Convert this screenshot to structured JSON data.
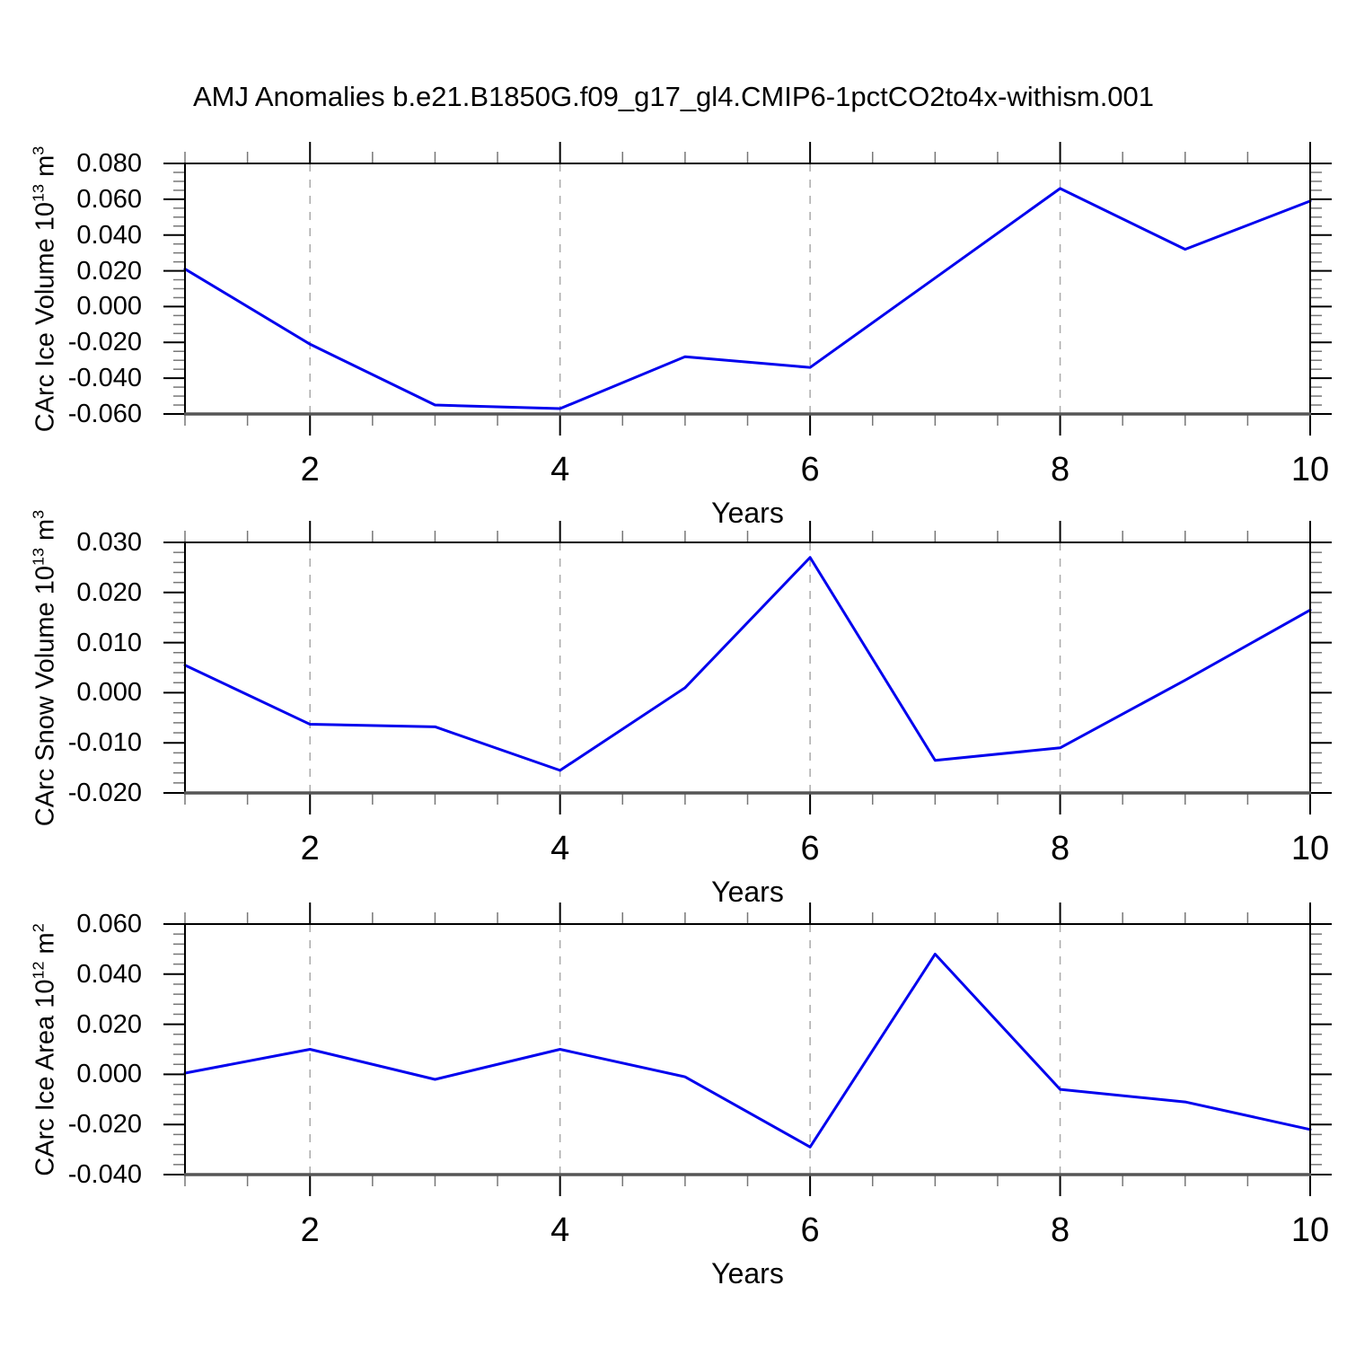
{
  "title": "AMJ Anomalies b.e21.B1850G.f09_g17_gl4.CMIP6-1pctCO2to4x-withism.001",
  "x_axis": {
    "label": "Years",
    "min": 1,
    "max": 10,
    "major_ticks": [
      2,
      4,
      6,
      8,
      10
    ],
    "major_tick_labels": [
      "2",
      "4",
      "6",
      "8",
      "10"
    ],
    "minor_step": 0.5,
    "gridline_years": [
      2,
      4,
      6,
      8
    ]
  },
  "colors": {
    "line": "#0000ee",
    "grid": "#aaaaaa",
    "frame": "#000000",
    "bottom_axis": "#555555",
    "major_tick": "#000000",
    "minor_tick": "#777777",
    "text": "#000000",
    "background": "#ffffff"
  },
  "chart_data": [
    {
      "type": "line",
      "panel": "carc-ice-volume",
      "ylabel": "CArc Ice Volume 10^13 m^3",
      "ylabel_parts": [
        [
          "t",
          "CArc Ice Volume 10"
        ],
        [
          "s",
          "13"
        ],
        [
          "t",
          " m"
        ],
        [
          "s",
          "3"
        ]
      ],
      "ylim": [
        -0.06,
        0.08
      ],
      "ytick_step": 0.02,
      "yminor_step": 0.005,
      "ytick_values": [
        0.08,
        0.06,
        0.04,
        0.02,
        0.0,
        -0.02,
        -0.04,
        -0.06
      ],
      "ytick_labels": [
        "0.080",
        "0.060",
        "0.040",
        "0.020",
        "0.000",
        "-0.020",
        "-0.040",
        "-0.060"
      ],
      "x": [
        1,
        2,
        3,
        4,
        5,
        6,
        7,
        8,
        9,
        10
      ],
      "values": [
        0.021,
        -0.021,
        -0.055,
        -0.057,
        -0.028,
        -0.034,
        0.016,
        0.066,
        0.032,
        0.059
      ]
    },
    {
      "type": "line",
      "panel": "carc-snow-volume",
      "ylabel": "CArc Snow Volume 10^13 m^3",
      "ylabel_parts": [
        [
          "t",
          "CArc Snow Volume 10"
        ],
        [
          "s",
          "13"
        ],
        [
          "t",
          " m"
        ],
        [
          "s",
          "3"
        ]
      ],
      "ylim": [
        -0.02,
        0.03
      ],
      "ytick_step": 0.01,
      "yminor_step": 0.002,
      "ytick_values": [
        0.03,
        0.02,
        0.01,
        0.0,
        -0.01,
        -0.02
      ],
      "ytick_labels": [
        "0.030",
        "0.020",
        "0.010",
        "0.000",
        "-0.010",
        "-0.020"
      ],
      "x": [
        1,
        2,
        3,
        4,
        5,
        6,
        7,
        8,
        9,
        10
      ],
      "values": [
        0.0055,
        -0.0063,
        -0.0068,
        -0.0155,
        0.001,
        0.027,
        -0.0135,
        -0.011,
        0.0025,
        0.0165
      ]
    },
    {
      "type": "line",
      "panel": "carc-ice-area",
      "ylabel": "CArc Ice Area 10^12 m^2",
      "ylabel_parts": [
        [
          "t",
          "CArc Ice Area 10"
        ],
        [
          "s",
          "12"
        ],
        [
          "t",
          " m"
        ],
        [
          "s",
          "2"
        ]
      ],
      "ylim": [
        -0.04,
        0.06
      ],
      "ytick_step": 0.02,
      "yminor_step": 0.004,
      "ytick_values": [
        0.06,
        0.04,
        0.02,
        0.0,
        -0.02,
        -0.04
      ],
      "ytick_labels": [
        "0.060",
        "0.040",
        "0.020",
        "0.000",
        "-0.020",
        "-0.040"
      ],
      "x": [
        1,
        2,
        3,
        4,
        5,
        6,
        7,
        8,
        9,
        10
      ],
      "values": [
        0.0005,
        0.01,
        -0.002,
        0.01,
        -0.001,
        -0.029,
        0.048,
        -0.006,
        -0.011,
        -0.022
      ]
    }
  ]
}
